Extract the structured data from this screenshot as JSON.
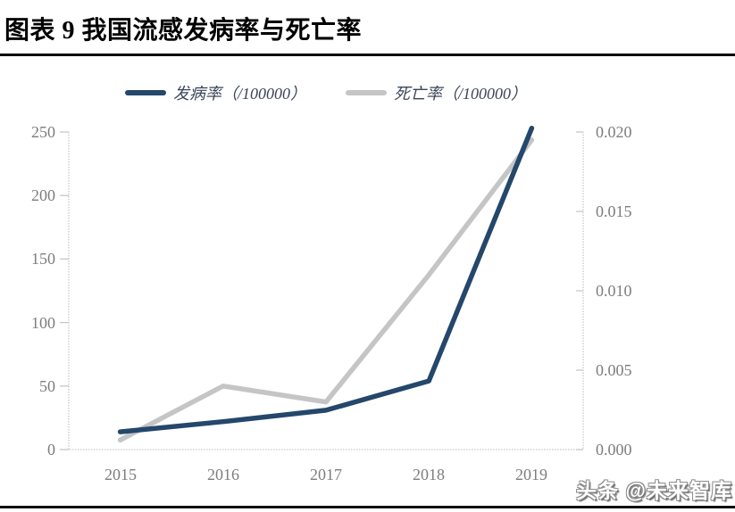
{
  "header": {
    "title": "图表 9 我国流感发病率与死亡率"
  },
  "watermark": "头条 @未来智库",
  "chart_data": {
    "type": "line",
    "title": "我国流感发病率与死亡率",
    "categories": [
      "2015",
      "2016",
      "2017",
      "2018",
      "2019"
    ],
    "series": [
      {
        "name": "发病率（/100000）",
        "axis": "left",
        "color": "#24476b",
        "values": [
          14,
          22,
          31,
          54,
          253
        ]
      },
      {
        "name": "死亡率（/100000）",
        "axis": "right",
        "color": "#c5c5c5",
        "values": [
          0.0006,
          0.004,
          0.003,
          0.011,
          0.0195
        ]
      }
    ],
    "left_axis": {
      "min": 0,
      "max": 250,
      "ticks": [
        "0",
        "50",
        "100",
        "150",
        "200",
        "250"
      ]
    },
    "right_axis": {
      "min": 0,
      "max": 0.02,
      "ticks": [
        "0.000",
        "0.005",
        "0.010",
        "0.015",
        "0.020"
      ]
    },
    "legend_position": "top",
    "grid": false,
    "axis_color": "#c8c8c8",
    "tick_label_color": "#7d7d7d"
  }
}
